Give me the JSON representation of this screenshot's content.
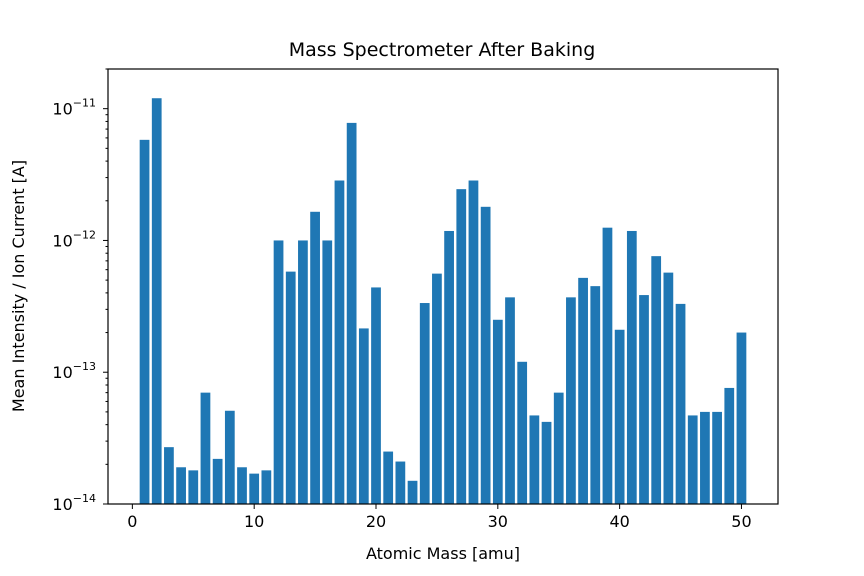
{
  "chart_data": {
    "type": "bar",
    "title": "Mass Spectrometer After Baking",
    "xlabel": "Atomic Mass [amu]",
    "ylabel": "Mean Intensity / Ion Current [A]",
    "yscale": "log",
    "xlim": [
      -2,
      53
    ],
    "ylim": [
      1e-14,
      2e-11
    ],
    "grid": false,
    "bar_color": "#1f77b4",
    "x_ticks": [
      0,
      10,
      20,
      30,
      40,
      50
    ],
    "x_tick_labels": [
      "0",
      "10",
      "20",
      "30",
      "40",
      "50"
    ],
    "y_ticks": [
      1e-14,
      1e-13,
      1e-12,
      1e-11
    ],
    "y_tick_labels": [
      {
        "base": "10",
        "exp": "−14"
      },
      {
        "base": "10",
        "exp": "−13"
      },
      {
        "base": "10",
        "exp": "−12"
      },
      {
        "base": "10",
        "exp": "−11"
      }
    ],
    "x": [
      1,
      2,
      3,
      4,
      5,
      6,
      7,
      8,
      9,
      10,
      11,
      12,
      13,
      14,
      15,
      16,
      17,
      18,
      19,
      20,
      21,
      22,
      23,
      24,
      25,
      26,
      27,
      28,
      29,
      30,
      31,
      32,
      33,
      34,
      35,
      36,
      37,
      38,
      39,
      40,
      41,
      42,
      43,
      44,
      45,
      46,
      47,
      48,
      49,
      50
    ],
    "values": [
      5.8e-12,
      1.2e-11,
      2.7e-14,
      1.9e-14,
      1.8e-14,
      7e-14,
      2.2e-14,
      5.1e-14,
      1.9e-14,
      1.7e-14,
      1.8e-14,
      1e-12,
      5.8e-13,
      1e-12,
      1.65e-12,
      1e-12,
      2.85e-12,
      7.8e-12,
      2.15e-13,
      4.4e-13,
      2.5e-14,
      2.1e-14,
      1.5e-14,
      3.35e-13,
      5.6e-13,
      1.18e-12,
      2.45e-12,
      2.85e-12,
      1.8e-12,
      2.5e-13,
      3.7e-13,
      1.2e-13,
      4.7e-14,
      4.2e-14,
      7e-14,
      3.7e-13,
      5.2e-13,
      4.5e-13,
      1.25e-12,
      2.1e-13,
      1.18e-12,
      3.85e-13,
      7.6e-13,
      5.7e-13,
      3.3e-13,
      4.7e-14,
      5e-14,
      5e-14,
      7.6e-14,
      2e-13
    ]
  }
}
